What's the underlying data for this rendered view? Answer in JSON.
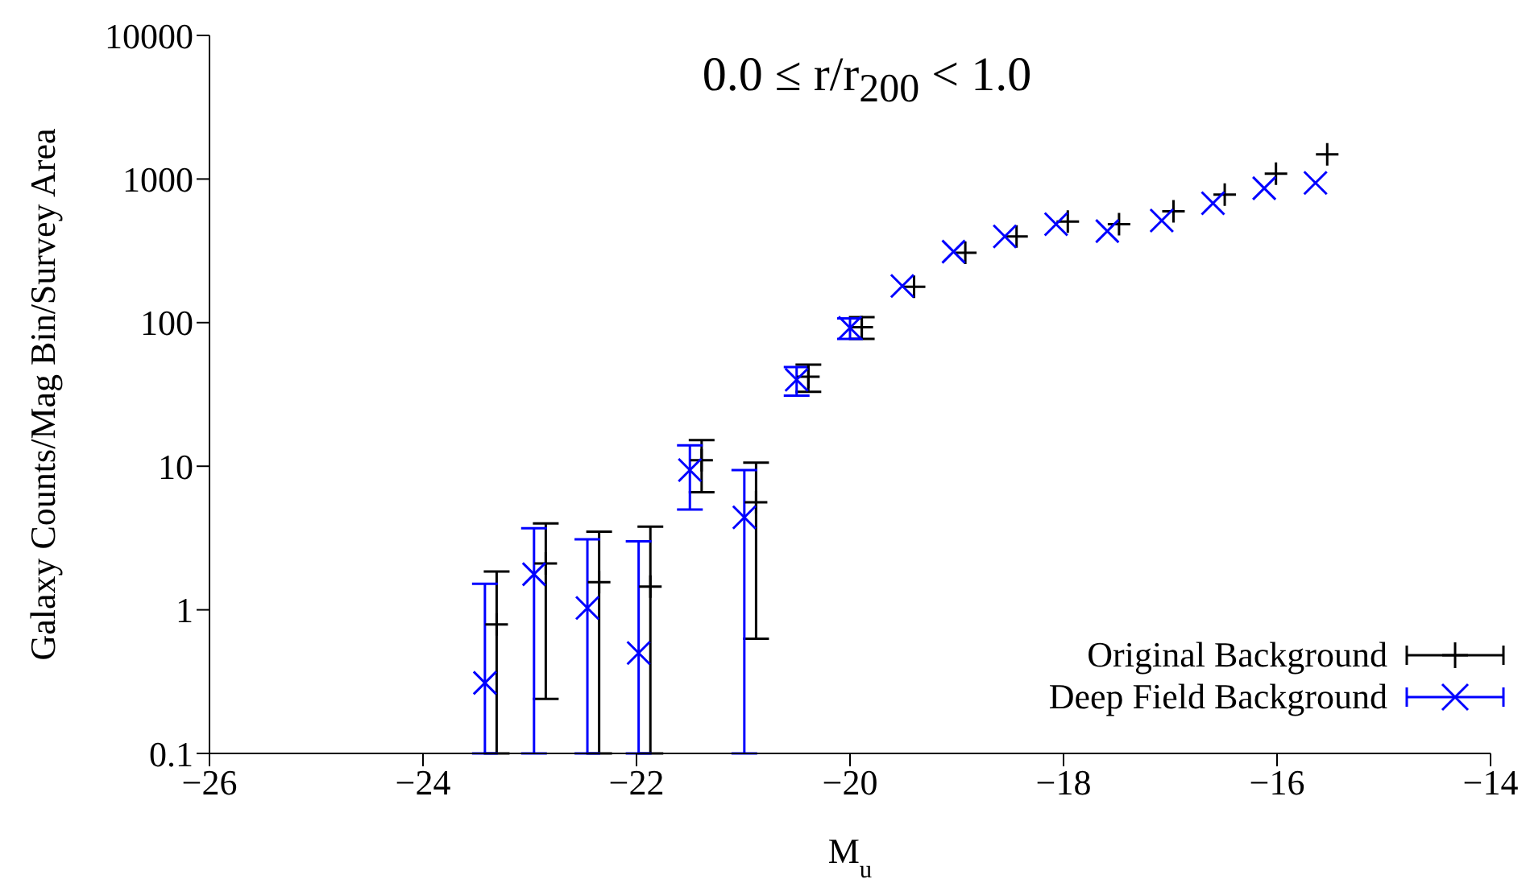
{
  "chart_data": {
    "type": "scatter",
    "title": "0.0 ≤ r/r$_{200}$ < 1.0",
    "xlabel": "M$_{u}$",
    "ylabel": "Galaxy Counts/Mag Bin/Survey Area",
    "log": "y",
    "grid": false,
    "legend": "bottom right",
    "xlim": [
      -26,
      -14
    ],
    "xticks": [
      -26,
      -24,
      -22,
      -20,
      -18,
      -16,
      -14
    ],
    "ylim": [
      0.1,
      10000
    ],
    "yticks": [
      0.1,
      1,
      10,
      100,
      1000,
      10000
    ],
    "series": [
      {
        "name": "Original Background",
        "color": "#000000",
        "marker": "plus",
        "x": [
          -23.31,
          -22.85,
          -22.35,
          -21.87,
          -21.39,
          -20.88,
          -20.39,
          -19.89,
          -19.4,
          -18.92,
          -18.44,
          -17.96,
          -17.48,
          -16.97,
          -16.49,
          -16.01,
          -15.53
        ],
        "values": [
          0.79,
          2.1,
          1.56,
          1.45,
          11,
          5.6,
          42,
          93,
          178,
          307,
          398,
          506,
          484,
          596,
          778,
          1089,
          1486
        ],
        "errors": [
          [
            0.1,
            1.85
          ],
          [
            0.24,
            4.0
          ],
          [
            0.1,
            3.5
          ],
          [
            0.1,
            3.8
          ],
          [
            6.6,
            15.2
          ],
          [
            0.63,
            10.6
          ],
          9,
          16,
          null,
          null,
          null,
          null,
          null,
          null,
          null,
          null,
          null
        ]
      },
      {
        "name": "Deep Field Background",
        "color": "#0000ff",
        "marker": "cross",
        "x": [
          -23.42,
          -22.96,
          -22.46,
          -21.98,
          -21.5,
          -20.99,
          -20.5,
          -20.0,
          -19.51,
          -19.03,
          -18.55,
          -18.07,
          -17.59,
          -17.08,
          -16.6,
          -16.12,
          -15.64
        ],
        "values": [
          0.31,
          1.77,
          1.03,
          0.5,
          9.4,
          4.4,
          40,
          92,
          180,
          312,
          398,
          485,
          434,
          514,
          678,
          863,
          940
        ],
        "errors": [
          [
            0.1,
            1.52
          ],
          [
            0.1,
            3.7
          ],
          [
            0.1,
            3.1
          ],
          [
            0.1,
            3.0
          ],
          [
            5.0,
            14
          ],
          [
            0.1,
            9.4
          ],
          9,
          15,
          null,
          null,
          null,
          null,
          null,
          null,
          null,
          null,
          null
        ]
      }
    ]
  }
}
